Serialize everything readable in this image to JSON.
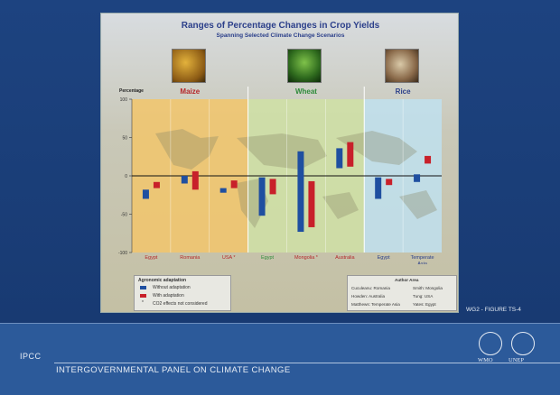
{
  "slide": {
    "figure_ref": "WG2 - FIGURE TS-4",
    "org_short": "IPCC",
    "org_full": "INTERGOVERNMENTAL PANEL ON CLIMATE CHANGE",
    "logos": [
      "WMO",
      "UNEP"
    ]
  },
  "chart_data": {
    "type": "bar",
    "title": "Ranges of Percentage Changes in Crop Yields",
    "subtitle": "Spanning Selected Climate Change Scenarios",
    "ylabel": "Percentage",
    "ylim": [
      -100,
      100
    ],
    "yticks": [
      100,
      50,
      0,
      -50,
      -100
    ],
    "crops": [
      {
        "name": "Maize",
        "color": "#b5272b"
      },
      {
        "name": "Wheat",
        "color": "#2e8b3a"
      },
      {
        "name": "Rice",
        "color": "#2b3f8a"
      }
    ],
    "regions": [
      "Egypt",
      "Romania",
      "USA *",
      "Egypt",
      "Mongolia *",
      "Australia",
      "Egypt",
      "Temperate Asia"
    ],
    "region_colors": [
      "#b5272b",
      "#b5272b",
      "#b5272b",
      "#2e8b3a",
      "#b5272b",
      "#b5272b",
      "#2b3f8a",
      "#2b3f8a"
    ],
    "series": [
      {
        "name": "Without adaptation",
        "color": "#1f4fa0",
        "ranges": [
          [
            -30,
            -18
          ],
          [
            -10,
            0
          ],
          [
            -22,
            -16
          ],
          [
            -52,
            -2
          ],
          [
            -73,
            32
          ],
          [
            10,
            36
          ],
          [
            -30,
            -2
          ],
          [
            -8,
            2
          ]
        ]
      },
      {
        "name": "With adaptation",
        "color": "#c8202a",
        "ranges": [
          [
            -16,
            -8
          ],
          [
            -18,
            6
          ],
          [
            -16,
            -6
          ],
          [
            -24,
            -4
          ],
          [
            -67,
            -7
          ],
          [
            12,
            44
          ],
          [
            -12,
            -4
          ],
          [
            16,
            26
          ]
        ]
      }
    ],
    "legend": {
      "title": "Agronomic adaptation",
      "items": [
        "Without adaptation",
        "With adaptation",
        "CO2 effects not considered"
      ]
    },
    "authors": {
      "title": "Author Area",
      "entries": [
        "Cuculeanu: Romania",
        "Smith: Mongolia",
        "Howden: Australia",
        "Tung: USA",
        "Matthews: Temperate Asia",
        "Yates: Egypt"
      ]
    }
  }
}
